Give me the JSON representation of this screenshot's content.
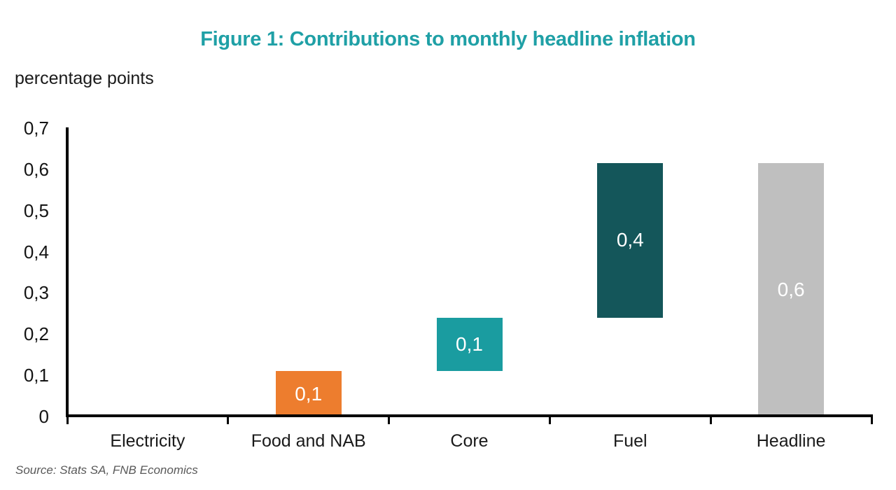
{
  "chart_data": {
    "type": "waterfall-bar",
    "title": "Figure 1: Contributions to monthly headline inflation",
    "ylabel": "percentage points",
    "source_note": "Source: Stats SA, FNB Economics",
    "decimal_separator": ",",
    "grid": false,
    "legend": false,
    "ylim": [
      0,
      0.7
    ],
    "ytick_values": [
      0,
      0.1,
      0.2,
      0.3,
      0.4,
      0.5,
      0.6,
      0.7
    ],
    "ytick_labels": [
      "0",
      "0,1",
      "0,2",
      "0,3",
      "0,4",
      "0,5",
      "0,6",
      "0,7"
    ],
    "categories": [
      "Electricity",
      "Food and NAB",
      "Core",
      "Fuel",
      "Headline"
    ],
    "bars": [
      {
        "category": "Electricity",
        "start": 0,
        "end": 0,
        "value": 0.0,
        "label": "",
        "color": null,
        "label_color": null
      },
      {
        "category": "Food and NAB",
        "start": 0,
        "end": 0.11,
        "value": 0.1,
        "label": "0,1",
        "color": "#ED7D2E",
        "label_color": "#FFFFFF"
      },
      {
        "category": "Core",
        "start": 0.11,
        "end": 0.24,
        "value": 0.1,
        "label": "0,1",
        "color": "#1A9CA0",
        "label_color": "#FFFFFF"
      },
      {
        "category": "Fuel",
        "start": 0.24,
        "end": 0.615,
        "value": 0.4,
        "label": "0,4",
        "color": "#14565A",
        "label_color": "#FFFFFF"
      },
      {
        "category": "Headline",
        "start": 0,
        "end": 0.615,
        "value": 0.6,
        "label": "0,6",
        "color": "#BFBFBF",
        "label_color": "#FFFFFF"
      }
    ],
    "colors": {
      "title": "#1FA0A6",
      "axis": "#000000",
      "tick_text": "#141414",
      "category_text": "#1A1A1A",
      "source_text": "#595959",
      "background": "#FFFFFF"
    }
  }
}
